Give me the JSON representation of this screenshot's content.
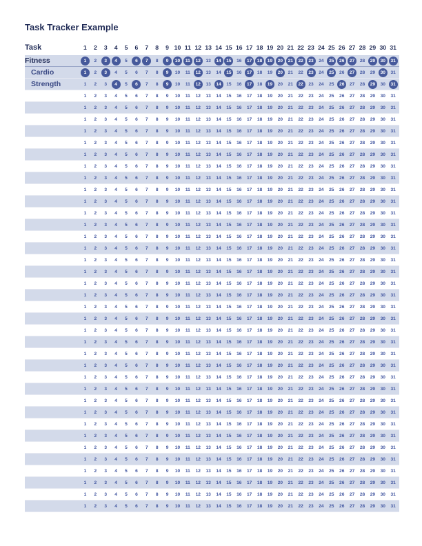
{
  "title": "Task Tracker Example",
  "header": {
    "task_label": "Task"
  },
  "days": [
    "1",
    "2",
    "3",
    "4",
    "5",
    "6",
    "7",
    "8",
    "9",
    "10",
    "11",
    "12",
    "13",
    "14",
    "15",
    "16",
    "17",
    "18",
    "19",
    "20",
    "21",
    "22",
    "23",
    "24",
    "25",
    "26",
    "27",
    "28",
    "29",
    "30",
    "31"
  ],
  "tasks": [
    {
      "name": "Fitness",
      "level": 0,
      "completed_days": [
        1,
        3,
        4,
        6,
        7,
        9,
        10,
        11,
        12,
        14,
        15,
        17,
        18,
        19,
        20,
        21,
        22,
        23,
        25,
        26,
        27,
        29,
        30,
        31
      ]
    },
    {
      "name": "Cardio",
      "level": 1,
      "completed_days": [
        1,
        3,
        9,
        12,
        15,
        17,
        20,
        23,
        25,
        27,
        30
      ]
    },
    {
      "name": "Strength",
      "level": 1,
      "completed_days": [
        4,
        6,
        9,
        12,
        14,
        17,
        19,
        22,
        26,
        29,
        31
      ]
    }
  ],
  "empty_row_count": 36,
  "colors": {
    "accent": "#46599b",
    "band": "#d3daea",
    "title": "#1f2a55",
    "numbers": "#4055a0"
  }
}
